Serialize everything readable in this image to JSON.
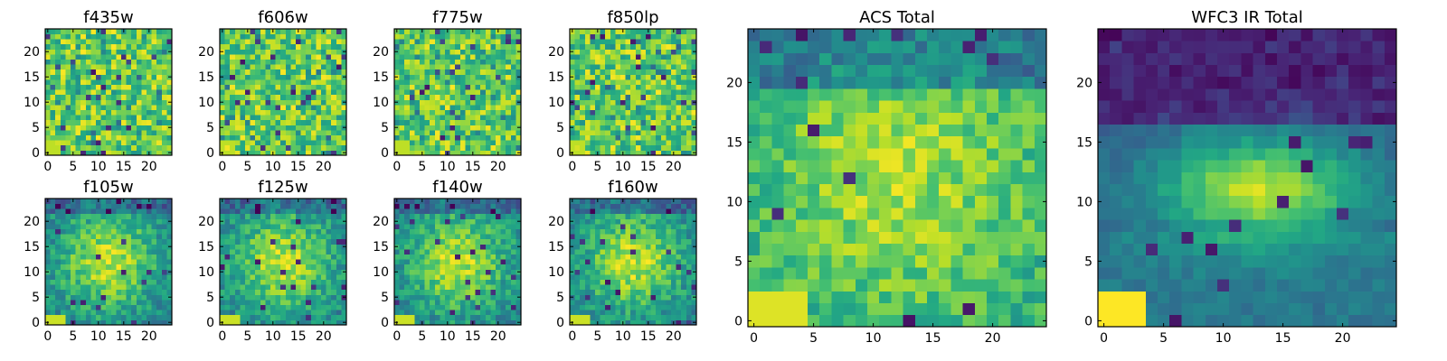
{
  "chart_data": [
    {
      "type": "heatmap",
      "title": "f435w",
      "xticks": [
        "0",
        "5",
        "10",
        "15",
        "20"
      ],
      "yticks": [
        "0",
        "5",
        "10",
        "15",
        "20"
      ],
      "grid_size": 25,
      "xlim": [
        -0.5,
        24.5
      ],
      "ylim": [
        -0.5,
        24.5
      ],
      "colormap": "viridis",
      "pattern": "noise",
      "seed": 11
    },
    {
      "type": "heatmap",
      "title": "f606w",
      "xticks": [
        "0",
        "5",
        "10",
        "15",
        "20"
      ],
      "yticks": [
        "0",
        "5",
        "10",
        "15",
        "20"
      ],
      "grid_size": 25,
      "xlim": [
        -0.5,
        24.5
      ],
      "ylim": [
        -0.5,
        24.5
      ],
      "colormap": "viridis",
      "pattern": "noise",
      "seed": 23
    },
    {
      "type": "heatmap",
      "title": "f775w",
      "xticks": [
        "0",
        "5",
        "10",
        "15",
        "20"
      ],
      "yticks": [
        "0",
        "5",
        "10",
        "15",
        "20"
      ],
      "grid_size": 25,
      "xlim": [
        -0.5,
        24.5
      ],
      "ylim": [
        -0.5,
        24.5
      ],
      "colormap": "viridis",
      "pattern": "noise",
      "seed": 37
    },
    {
      "type": "heatmap",
      "title": "f850lp",
      "xticks": [
        "0",
        "5",
        "10",
        "15",
        "20"
      ],
      "yticks": [
        "0",
        "5",
        "10",
        "15",
        "20"
      ],
      "grid_size": 25,
      "xlim": [
        -0.5,
        24.5
      ],
      "ylim": [
        -0.5,
        24.5
      ],
      "colormap": "viridis",
      "pattern": "noise",
      "seed": 41
    },
    {
      "type": "heatmap",
      "title": "f105w",
      "xticks": [
        "0",
        "5",
        "10",
        "15",
        "20"
      ],
      "yticks": [
        "0",
        "5",
        "10",
        "15",
        "20"
      ],
      "grid_size": 25,
      "xlim": [
        -0.5,
        24.5
      ],
      "ylim": [
        -0.5,
        24.5
      ],
      "colormap": "viridis",
      "pattern": "blob",
      "seed": 53
    },
    {
      "type": "heatmap",
      "title": "f125w",
      "xticks": [
        "0",
        "5",
        "10",
        "15",
        "20"
      ],
      "yticks": [
        "0",
        "5",
        "10",
        "15",
        "20"
      ],
      "grid_size": 25,
      "xlim": [
        -0.5,
        24.5
      ],
      "ylim": [
        -0.5,
        24.5
      ],
      "colormap": "viridis",
      "pattern": "blob",
      "seed": 61
    },
    {
      "type": "heatmap",
      "title": "f140w",
      "xticks": [
        "0",
        "5",
        "10",
        "15",
        "20"
      ],
      "yticks": [
        "0",
        "5",
        "10",
        "15",
        "20"
      ],
      "grid_size": 25,
      "xlim": [
        -0.5,
        24.5
      ],
      "ylim": [
        -0.5,
        24.5
      ],
      "colormap": "viridis",
      "pattern": "blob",
      "seed": 71
    },
    {
      "type": "heatmap",
      "title": "f160w",
      "xticks": [
        "0",
        "5",
        "10",
        "15",
        "20"
      ],
      "yticks": [
        "0",
        "5",
        "10",
        "15",
        "20"
      ],
      "grid_size": 25,
      "xlim": [
        -0.5,
        24.5
      ],
      "ylim": [
        -0.5,
        24.5
      ],
      "colormap": "viridis",
      "pattern": "blob",
      "seed": 83
    },
    {
      "type": "heatmap",
      "title": "ACS Total",
      "xticks": [
        "0",
        "5",
        "10",
        "15",
        "20"
      ],
      "yticks": [
        "0",
        "5",
        "10",
        "15",
        "20"
      ],
      "grid_size": 25,
      "xlim": [
        -0.5,
        24.5
      ],
      "ylim": [
        -0.5,
        24.5
      ],
      "colormap": "viridis",
      "pattern": "acs",
      "seed": 97
    },
    {
      "type": "heatmap",
      "title": "WFC3 IR Total",
      "xticks": [
        "0",
        "5",
        "10",
        "15",
        "20"
      ],
      "yticks": [
        "0",
        "5",
        "10",
        "15",
        "20"
      ],
      "grid_size": 25,
      "xlim": [
        -0.5,
        24.5
      ],
      "ylim": [
        -0.5,
        24.5
      ],
      "colormap": "viridis",
      "pattern": "ir",
      "seed": 101
    }
  ]
}
